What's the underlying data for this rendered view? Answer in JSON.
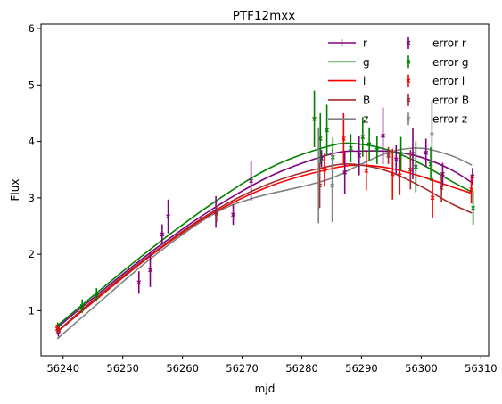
{
  "chart_data": {
    "type": "line",
    "title": "PTF12mxx",
    "xlabel": "mjd",
    "ylabel": "Flux",
    "xlim": [
      56236.3,
      56311.3
    ],
    "ylim": [
      0.2,
      6.08
    ],
    "xticks": [
      56240,
      56250,
      56260,
      56270,
      56280,
      56290,
      56300,
      56310
    ],
    "yticks": [
      1,
      2,
      3,
      4,
      5,
      6
    ],
    "grid": false,
    "legend_placement": "top-right",
    "series": [
      {
        "name": "r",
        "color": "#800080",
        "x": [
          56239,
          56245,
          56255,
          56265,
          56275,
          56285,
          56290,
          56295,
          56300,
          56305,
          56308.5
        ],
        "y": [
          0.7,
          1.22,
          2.06,
          2.8,
          3.4,
          3.78,
          3.83,
          3.82,
          3.72,
          3.5,
          3.27
        ]
      },
      {
        "name": "g",
        "color": "#008000",
        "x": [
          56239,
          56245,
          56255,
          56265,
          56275,
          56285,
          56290,
          56295,
          56300,
          56305,
          56308.5
        ],
        "y": [
          0.73,
          1.26,
          2.12,
          2.9,
          3.55,
          3.93,
          3.95,
          3.83,
          3.6,
          3.3,
          3.1
        ]
      },
      {
        "name": "i",
        "color": "#ff0000",
        "x": [
          56239,
          56245,
          56255,
          56265,
          56275,
          56285,
          56290,
          56295,
          56300,
          56305,
          56308.5
        ],
        "y": [
          0.62,
          1.15,
          2.0,
          2.72,
          3.22,
          3.52,
          3.58,
          3.52,
          3.38,
          3.2,
          3.08
        ]
      },
      {
        "name": "B",
        "color": "#a52a2a",
        "x": [
          56239,
          56245,
          56255,
          56265,
          56275,
          56285,
          56290,
          56295,
          56300,
          56305,
          56308.5
        ],
        "y": [
          0.63,
          1.18,
          2.02,
          2.75,
          3.27,
          3.57,
          3.58,
          3.45,
          3.2,
          2.9,
          2.73
        ]
      },
      {
        "name": "z",
        "color": "#808080",
        "x": [
          56239,
          56245,
          56255,
          56265,
          56272,
          56280,
          56285,
          56290,
          56295,
          56300,
          56305,
          56308.5
        ],
        "y": [
          0.5,
          1.05,
          1.95,
          2.7,
          3.0,
          3.2,
          3.35,
          3.6,
          3.82,
          3.88,
          3.75,
          3.58
        ]
      }
    ],
    "errors": [
      {
        "name": "error r",
        "color": "#800080",
        "points": [
          {
            "x": 56239.2,
            "y": 0.62,
            "err": 0.08
          },
          {
            "x": 56252.7,
            "y": 1.5,
            "err": 0.2
          },
          {
            "x": 56254.6,
            "y": 1.72,
            "err": 0.3
          },
          {
            "x": 56256.6,
            "y": 2.35,
            "err": 0.18
          },
          {
            "x": 56257.6,
            "y": 2.67,
            "err": 0.3
          },
          {
            "x": 56265.6,
            "y": 2.75,
            "err": 0.28
          },
          {
            "x": 56268.5,
            "y": 2.7,
            "err": 0.18
          },
          {
            "x": 56271.5,
            "y": 3.3,
            "err": 0.35
          },
          {
            "x": 56283.3,
            "y": 3.7,
            "err": 0.15
          },
          {
            "x": 56287.2,
            "y": 3.45,
            "err": 0.38
          },
          {
            "x": 56289.6,
            "y": 3.75,
            "err": 0.35
          },
          {
            "x": 56293.6,
            "y": 4.1,
            "err": 0.5
          },
          {
            "x": 56295.8,
            "y": 3.68,
            "err": 0.25
          },
          {
            "x": 56298.6,
            "y": 3.78,
            "err": 0.45
          },
          {
            "x": 56300.8,
            "y": 3.8,
            "err": 0.25
          },
          {
            "x": 56303.6,
            "y": 3.42,
            "err": 0.2
          },
          {
            "x": 56308.6,
            "y": 3.38,
            "err": 0.15
          }
        ]
      },
      {
        "name": "error g",
        "color": "#008000",
        "points": [
          {
            "x": 56239.1,
            "y": 0.72,
            "err": 0.07
          },
          {
            "x": 56243.2,
            "y": 1.08,
            "err": 0.12
          },
          {
            "x": 56245.6,
            "y": 1.28,
            "err": 0.12
          },
          {
            "x": 56282.1,
            "y": 4.4,
            "err": 0.5
          },
          {
            "x": 56283.1,
            "y": 4.05,
            "err": 0.45
          },
          {
            "x": 56284.2,
            "y": 4.2,
            "err": 0.45
          },
          {
            "x": 56285.2,
            "y": 3.72,
            "err": 0.35
          },
          {
            "x": 56288.2,
            "y": 3.88,
            "err": 0.25
          },
          {
            "x": 56290.2,
            "y": 4.08,
            "err": 0.35
          },
          {
            "x": 56291.3,
            "y": 3.95,
            "err": 0.3
          },
          {
            "x": 56292.6,
            "y": 3.85,
            "err": 0.25
          },
          {
            "x": 56296.6,
            "y": 3.78,
            "err": 0.3
          },
          {
            "x": 56299.1,
            "y": 3.55,
            "err": 0.45
          },
          {
            "x": 56301.6,
            "y": 3.6,
            "err": 0.3
          },
          {
            "x": 56308.7,
            "y": 2.82,
            "err": 0.3
          }
        ]
      },
      {
        "name": "error i",
        "color": "#ff0000",
        "points": [
          {
            "x": 56239.0,
            "y": 0.68,
            "err": 0.07
          },
          {
            "x": 56283.8,
            "y": 3.5,
            "err": 0.3
          },
          {
            "x": 56287.0,
            "y": 4.05,
            "err": 0.45
          },
          {
            "x": 56290.8,
            "y": 3.48,
            "err": 0.35
          },
          {
            "x": 56295.2,
            "y": 3.42,
            "err": 0.45
          },
          {
            "x": 56296.4,
            "y": 3.4,
            "err": 0.35
          },
          {
            "x": 56301.9,
            "y": 3.0,
            "err": 0.35
          },
          {
            "x": 56308.4,
            "y": 3.15,
            "err": 0.25
          }
        ]
      },
      {
        "name": "error B",
        "color": "#a52a2a",
        "points": [
          {
            "x": 56239.3,
            "y": 0.65,
            "err": 0.07
          },
          {
            "x": 56265.7,
            "y": 2.72,
            "err": 0.15
          },
          {
            "x": 56283.0,
            "y": 3.22,
            "err": 0.4
          },
          {
            "x": 56294.5,
            "y": 3.75,
            "err": 0.15
          },
          {
            "x": 56298.2,
            "y": 3.5,
            "err": 0.35
          },
          {
            "x": 56303.4,
            "y": 3.18,
            "err": 0.25
          }
        ]
      },
      {
        "name": "error z",
        "color": "#808080",
        "points": [
          {
            "x": 56282.8,
            "y": 3.4,
            "err": 0.85
          },
          {
            "x": 56285.1,
            "y": 3.22,
            "err": 0.65
          },
          {
            "x": 56301.8,
            "y": 4.12,
            "err": 0.6
          }
        ]
      }
    ]
  }
}
